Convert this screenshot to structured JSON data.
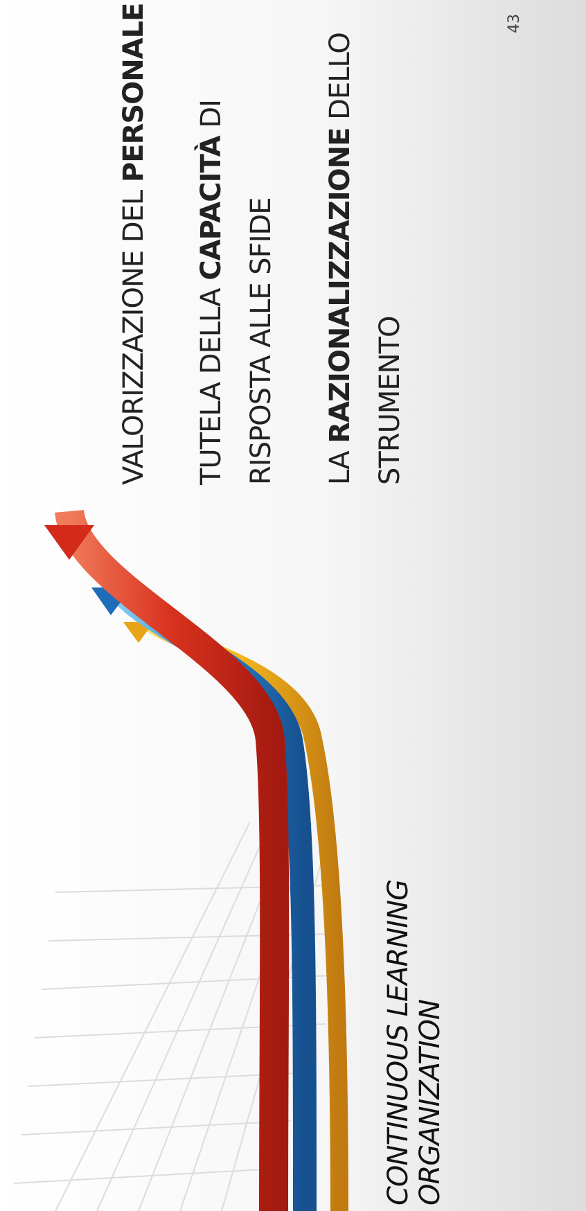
{
  "slide": {
    "lines": [
      {
        "segments": [
          {
            "text": "VALORIZZAZIONE DEL "
          },
          {
            "text": "PERSONALE",
            "bold": true
          }
        ]
      },
      {
        "segments": [
          {
            "text": "TUTELA DELLA "
          },
          {
            "text": "CAPACITÀ",
            "bold": true
          },
          {
            "text": " DI"
          }
        ]
      },
      {
        "segments": [
          {
            "text": "RISPOSTA ALLE SFIDE"
          }
        ]
      },
      {
        "segments": [
          {
            "text": "LA "
          },
          {
            "text": "RAZIONALIZZAZIONE",
            "bold": true
          },
          {
            "text": " DELLO"
          }
        ]
      },
      {
        "segments": [
          {
            "text": "STRUMENTO"
          }
        ]
      }
    ],
    "caption": [
      "CONTINUOUS LEARNING",
      "ORGANIZATION"
    ],
    "page_number": "43"
  }
}
